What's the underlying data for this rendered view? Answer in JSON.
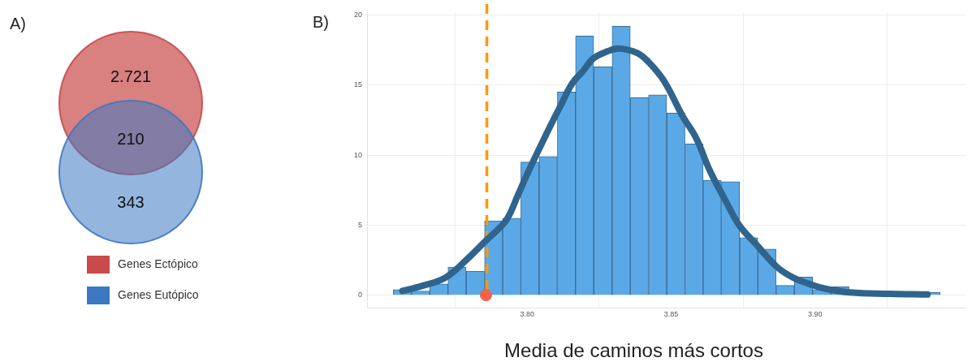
{
  "chart_data": [
    {
      "type": "other",
      "title": "A)",
      "legend": "bottom",
      "series": [
        {
          "name": "Genes Ectópico",
          "color": "#c94a4a"
        },
        {
          "name": "Genes Eutópico",
          "color": "#3d78c2"
        }
      ],
      "annotations": [
        "2.721",
        "210",
        "343"
      ]
    },
    {
      "type": "histogram",
      "title": "B)",
      "xlabel": "Media de caminos más cortos",
      "color": "#5aa9e6",
      "bins": [
        3.7535,
        3.7598,
        3.7662,
        3.7725,
        3.7788,
        3.7852,
        3.7915,
        3.7978,
        3.8041,
        3.8105,
        3.8168,
        3.8231,
        3.8295,
        3.8358,
        3.8421,
        3.8485,
        3.8548,
        3.8611,
        3.8674,
        3.8738,
        3.8801,
        3.8864,
        3.8928,
        3.8991,
        3.9054,
        3.9118,
        3.9181,
        3.9244,
        3.9307,
        3.9371,
        3.9434
      ],
      "values": [
        0.4,
        0.3,
        0.8,
        2.0,
        1.7,
        5.3,
        5.5,
        9.5,
        9.9,
        14.5,
        18.5,
        16.3,
        19.2,
        14.1,
        14.3,
        13.0,
        10.8,
        8.2,
        8.1,
        4.1,
        3.3,
        0.7,
        1.3,
        0.4,
        0.6,
        null,
        null,
        null,
        null,
        0.2
      ],
      "series": [
        {
          "type": "line",
          "color": "#30648c",
          "x": [
            3.7567,
            3.7641,
            3.7716,
            3.7791,
            3.7857,
            3.7894,
            3.7932,
            3.7969,
            3.8006,
            3.8081,
            3.8118,
            3.8156,
            3.8194,
            3.823,
            3.8278,
            3.832,
            3.8381,
            3.8419,
            3.8475,
            3.8539,
            3.8587,
            3.8634,
            3.869,
            3.8736,
            3.8792,
            3.8868,
            3.8924,
            3.898,
            3.9027,
            3.912,
            3.9261,
            3.939
          ],
          "values": [
            0.3,
            0.7,
            1.25,
            2.56,
            3.9,
            4.6,
            5.5,
            7.2,
            8.9,
            12.1,
            13.6,
            15.1,
            16.0,
            16.9,
            17.4,
            17.6,
            17.3,
            16.7,
            15.3,
            12.8,
            11.2,
            8.9,
            6.7,
            5.0,
            3.7,
            2.0,
            1.25,
            0.8,
            0.5,
            0.2,
            0.1,
            0.05
          ]
        },
        {
          "type": "scatter",
          "color": "#f5614b",
          "marker": "circle",
          "x": [
            3.7857
          ],
          "values": [
            0
          ]
        }
      ],
      "ref_lines": [
        {
          "axis": "x",
          "value": 3.786,
          "color": "#ff9900",
          "line_style": "dashed"
        }
      ],
      "xlim": [
        3.7444,
        3.9522
      ],
      "xticks": [
        {
          "value": 3.8,
          "label": "3.80"
        },
        {
          "value": 3.85,
          "label": "3.85"
        },
        {
          "value": 3.9,
          "label": "3.90"
        }
      ],
      "ylim": [
        -0.9,
        20.2
      ],
      "yticks": [
        0,
        5,
        10,
        15,
        20
      ],
      "grid": true
    }
  ]
}
